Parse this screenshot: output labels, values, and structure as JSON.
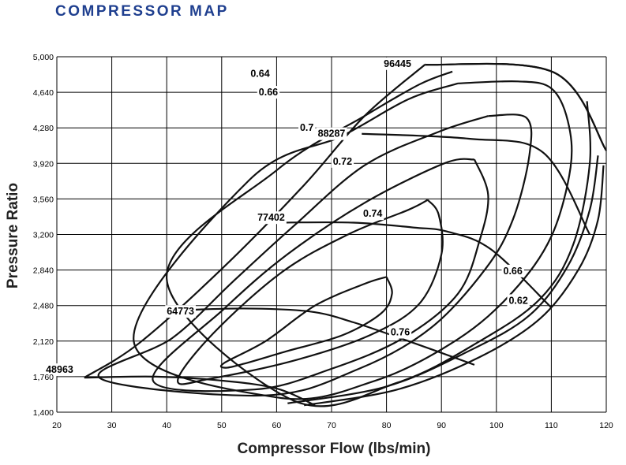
{
  "title": "COMPRESSOR MAP",
  "colors": {
    "title": "#1f3f8f",
    "curves": "#111111",
    "grid": "#000000"
  },
  "chart_data": {
    "type": "line",
    "xlabel": "Compressor Flow (lbs/min)",
    "ylabel": "Pressure Ratio",
    "xlim": [
      20,
      120
    ],
    "ylim": [
      1.4,
      5.0
    ],
    "x_ticks": [
      "20",
      "30",
      "40",
      "50",
      "60",
      "70",
      "80",
      "90",
      "100",
      "110",
      "120"
    ],
    "y_ticks": [
      "1,400",
      "1,760",
      "2,120",
      "2,480",
      "2,840",
      "3,200",
      "3,560",
      "3,920",
      "4,280",
      "4,640",
      "5,000"
    ],
    "grid": true,
    "surge_line": [
      [
        25,
        1.75
      ],
      [
        35,
        2.1
      ],
      [
        50,
        2.85
      ],
      [
        65,
        3.7
      ],
      [
        76,
        4.4
      ],
      [
        87,
        4.92
      ]
    ],
    "choke_line": [
      [
        87,
        4.92
      ],
      [
        110.5,
        4.84
      ],
      [
        120,
        4.05
      ]
    ],
    "speed_lines": [
      {
        "label": "96445",
        "label_at": [
          84.5,
          4.93
        ],
        "points": [
          [
            87,
            4.92
          ],
          [
            110.5,
            4.84
          ],
          [
            120,
            4.05
          ]
        ]
      },
      {
        "label": "88287",
        "label_at": [
          72.5,
          4.22
        ],
        "points": [
          [
            75.5,
            4.22
          ],
          [
            95,
            4.17
          ],
          [
            108.5,
            4.03
          ],
          [
            117,
            3.2
          ]
        ]
      },
      {
        "label": "77402",
        "label_at": [
          61.5,
          3.37
        ],
        "points": [
          [
            60,
            3.32
          ],
          [
            74,
            3.32
          ],
          [
            85,
            3.27
          ],
          [
            91,
            3.23
          ],
          [
            99,
            3.05
          ],
          [
            110,
            2.46
          ]
        ]
      },
      {
        "label": "64773",
        "label_at": [
          45,
          2.42
        ],
        "points": [
          [
            41,
            2.43
          ],
          [
            54,
            2.45
          ],
          [
            66,
            2.42
          ],
          [
            74,
            2.31
          ],
          [
            84,
            2.12
          ],
          [
            96,
            1.88
          ]
        ]
      },
      {
        "label": "48963",
        "label_at": [
          23,
          1.83
        ],
        "points": [
          [
            25,
            1.75
          ],
          [
            38,
            1.76
          ],
          [
            50,
            1.72
          ],
          [
            60,
            1.64
          ],
          [
            67,
            1.47
          ]
        ]
      }
    ],
    "efficiency_islands": [
      {
        "label": "0.76",
        "label_at": [
          82.5,
          2.21
        ],
        "points": [
          [
            80,
            2.77
          ],
          [
            76,
            2.7
          ],
          [
            67,
            2.48
          ],
          [
            58,
            2.12
          ],
          [
            50.5,
            1.9
          ],
          [
            50.7,
            1.85
          ],
          [
            54,
            1.89
          ],
          [
            62,
            2.02
          ],
          [
            72,
            2.18
          ],
          [
            79,
            2.4
          ],
          [
            81,
            2.6
          ],
          [
            80,
            2.77
          ]
        ]
      },
      {
        "label": "0.74",
        "label_at": [
          77.5,
          3.41
        ],
        "points": [
          [
            87.5,
            3.55
          ],
          [
            84,
            3.45
          ],
          [
            73,
            3.2
          ],
          [
            61,
            2.82
          ],
          [
            48.5,
            2.2
          ],
          [
            42,
            1.72
          ],
          [
            48,
            1.74
          ],
          [
            63,
            1.92
          ],
          [
            77,
            2.18
          ],
          [
            86,
            2.5
          ],
          [
            90,
            3.0
          ],
          [
            89.5,
            3.4
          ],
          [
            87.5,
            3.55
          ]
        ]
      },
      {
        "label": "0.72",
        "label_at": [
          72,
          3.94
        ],
        "points": [
          [
            96,
            3.96
          ],
          [
            90.5,
            3.92
          ],
          [
            76,
            3.52
          ],
          [
            62,
            3.0
          ],
          [
            50.5,
            2.45
          ],
          [
            37.5,
            1.72
          ],
          [
            56,
            1.63
          ],
          [
            70,
            1.84
          ],
          [
            83,
            2.15
          ],
          [
            93,
            2.6
          ],
          [
            97,
            3.15
          ],
          [
            98.5,
            3.6
          ],
          [
            96,
            3.96
          ]
        ]
      },
      {
        "label": "0.7",
        "label_at": [
          65.5,
          4.28
        ],
        "points": [
          [
            98.5,
            4.4
          ],
          [
            89.5,
            4.24
          ],
          [
            76,
            3.9
          ],
          [
            63,
            3.28
          ],
          [
            52,
            2.72
          ],
          [
            41,
            2.15
          ],
          [
            28,
            1.74
          ],
          [
            58,
            1.57
          ],
          [
            75,
            1.84
          ],
          [
            88,
            2.25
          ],
          [
            98,
            2.85
          ],
          [
            103,
            3.35
          ],
          [
            106,
            4.0
          ],
          [
            105.5,
            4.38
          ],
          [
            98.5,
            4.4
          ]
        ]
      },
      {
        "label": "0.66",
        "label_at": [
          58.5,
          4.64
        ],
        "points": [
          [
            93,
            4.73
          ],
          [
            84,
            4.57
          ],
          [
            72,
            4.2
          ],
          [
            55,
            3.75
          ],
          [
            34,
            2.12
          ],
          [
            60,
            1.55
          ],
          [
            78,
            1.72
          ],
          [
            93,
            2.14
          ],
          [
            103,
            2.62
          ],
          [
            110,
            3.18
          ],
          [
            113.5,
            3.88
          ],
          [
            113,
            4.35
          ],
          [
            110,
            4.68
          ],
          [
            104,
            4.75
          ],
          [
            93,
            4.73
          ]
        ]
      },
      {
        "label": "0.64",
        "label_at": [
          57,
          4.83
        ],
        "points": [
          [
            92,
            4.85
          ],
          [
            86,
            4.72
          ],
          [
            76,
            4.4
          ],
          [
            60,
            3.85
          ],
          [
            40,
            2.75
          ],
          [
            63,
            1.52
          ],
          [
            82,
            1.7
          ],
          [
            97,
            2.12
          ],
          [
            108,
            2.55
          ],
          [
            114,
            3.1
          ],
          [
            117,
            3.92
          ],
          [
            116.5,
            4.55
          ]
        ]
      },
      {
        "label": "0.66",
        "label_at": [
          103,
          2.83
        ],
        "points": [
          [
            62,
            1.49
          ],
          [
            80,
            1.66
          ],
          [
            95,
            2.02
          ],
          [
            106,
            2.38
          ],
          [
            113,
            2.88
          ],
          [
            117,
            3.45
          ],
          [
            118.5,
            4.0
          ]
        ]
      },
      {
        "label": "0.62",
        "label_at": [
          104,
          2.53
        ],
        "points": [
          [
            65,
            1.47
          ],
          [
            82,
            1.63
          ],
          [
            97,
            1.96
          ],
          [
            108,
            2.35
          ],
          [
            115,
            2.85
          ],
          [
            118.5,
            3.35
          ],
          [
            119.5,
            3.9
          ]
        ]
      }
    ]
  }
}
